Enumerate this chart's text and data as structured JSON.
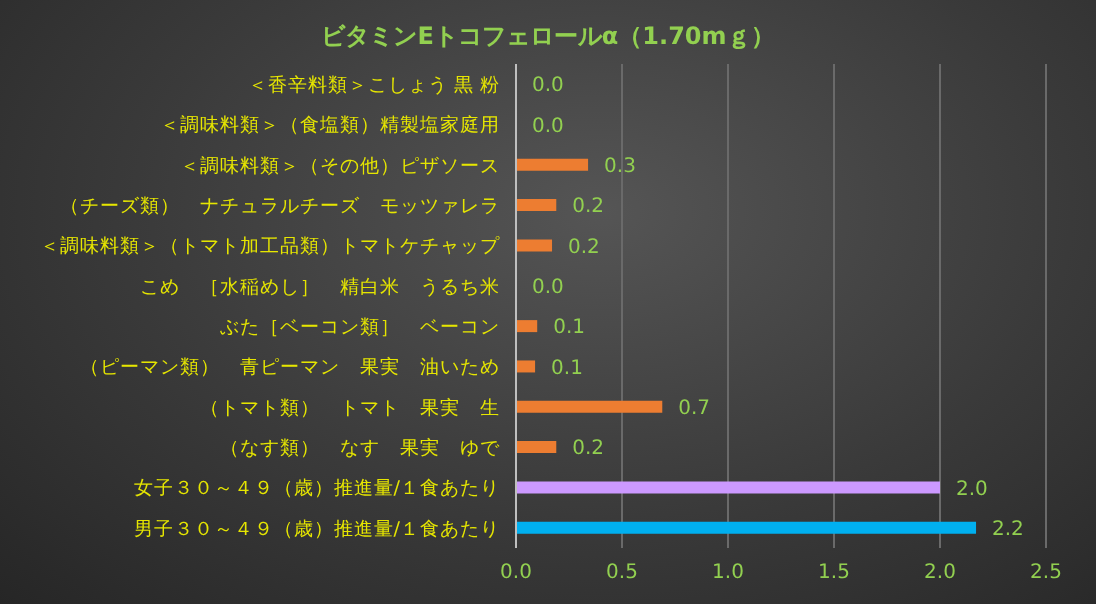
{
  "chart_data": {
    "type": "bar",
    "orientation": "horizontal",
    "title": "ビタミンEトコフェロールα（1.70mｇ）",
    "categories": [
      "＜香辛料類＞こしょう 黒 粉",
      "＜調味料類＞（食塩類）精製塩家庭用",
      "＜調味料類＞（その他）ピザソース",
      "（チーズ類）　ナチュラルチーズ　モッツァレラ",
      "＜調味料類＞（トマト加工品類）トマトケチャップ",
      "こめ　［水稲めし］　精白米　うるち米",
      "ぶた［ベーコン類］　ベーコン",
      "（ピーマン類）　青ピーマン　果実　油いため",
      "（トマト類）　トマト　果実　生",
      "（なす類）　なす　果実　ゆで",
      "女子３０～４９（歳）推進量/１食あたり",
      "男子３０～４９（歳）推進量/１食あたり"
    ],
    "values": [
      0,
      0,
      0.34,
      0.19,
      0.17,
      0,
      0.1,
      0.09,
      0.69,
      0.19,
      2.0,
      2.17
    ],
    "value_labels": [
      "0.0",
      "0.0",
      "0.3",
      "0.2",
      "0.2",
      "0.0",
      "0.1",
      "0.1",
      "0.7",
      "0.2",
      "2.0",
      "2.2"
    ],
    "colors": [
      "#ed7d31",
      "#ed7d31",
      "#ed7d31",
      "#ed7d31",
      "#ed7d31",
      "#ed7d31",
      "#ed7d31",
      "#ed7d31",
      "#ed7d31",
      "#ed7d31",
      "#cc99ff",
      "#00b0f0"
    ],
    "xlim": [
      0,
      2.5
    ],
    "xticks": [
      {
        "value": 0,
        "label": "0.0"
      },
      {
        "value": 0.5,
        "label": "0.5"
      },
      {
        "value": 1,
        "label": "1.0"
      },
      {
        "value": 1.5,
        "label": "1.5"
      },
      {
        "value": 2,
        "label": "2.0"
      },
      {
        "value": 2.5,
        "label": "2.5"
      }
    ],
    "grid": "x"
  }
}
